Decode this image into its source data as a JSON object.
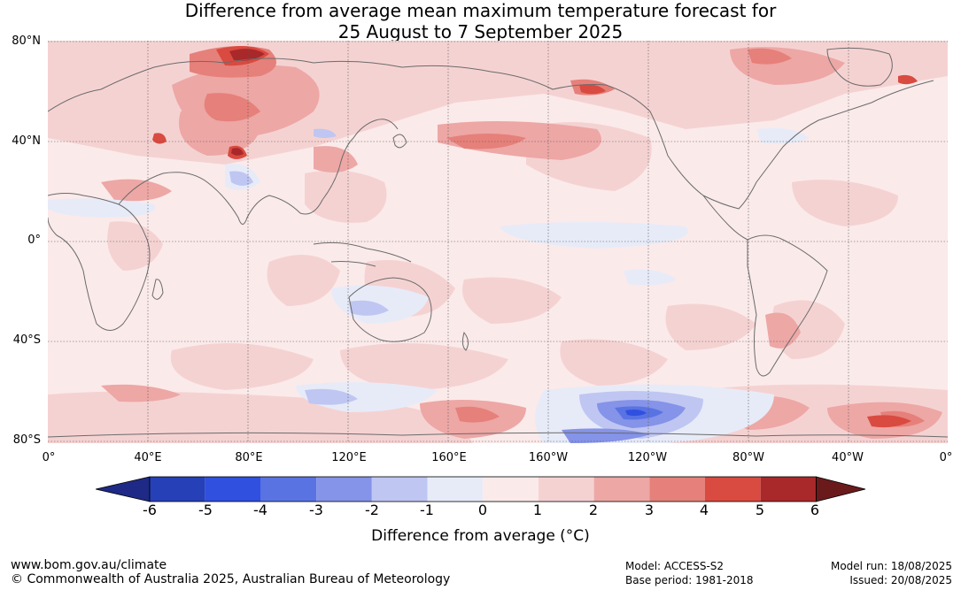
{
  "title": {
    "line1": "Difference from average mean maximum temperature forecast for",
    "line2": "25 August to 7 September 2025"
  },
  "map": {
    "lat_labels": [
      "80°N",
      "40°N",
      "0°",
      "40°S",
      "80°S"
    ],
    "lon_labels": [
      "0°",
      "40°E",
      "80°E",
      "120°E",
      "160°E",
      "160°W",
      "120°W",
      "80°W",
      "40°W",
      "0°"
    ],
    "background_color": "#fbeaea",
    "coastline_color": "#6b6b6b",
    "grid": true
  },
  "colorbar": {
    "ticks": [
      "-6",
      "-5",
      "-4",
      "-3",
      "-2",
      "-1",
      "0",
      "1",
      "2",
      "3",
      "4",
      "5",
      "6"
    ],
    "colors": [
      "#1e2a85",
      "#2640b8",
      "#3050e0",
      "#5a73e3",
      "#8593e8",
      "#bfc6f2",
      "#e7ebf8",
      "#fbeaea",
      "#f5d2d2",
      "#eda7a5",
      "#e6807a",
      "#d94a40",
      "#a9282a",
      "#6b1a1c"
    ],
    "label": "Difference from average (°C)",
    "extend": "both"
  },
  "footer": {
    "url": "www.bom.gov.au/climate",
    "copyright": "© Commonwealth of Australia 2025, Australian Bureau of Meteorology",
    "model": "Model: ACCESS-S2",
    "base_period": "Base period: 1981-2018",
    "model_run": "Model run: 18/08/2025",
    "issued": "Issued: 20/08/2025"
  }
}
